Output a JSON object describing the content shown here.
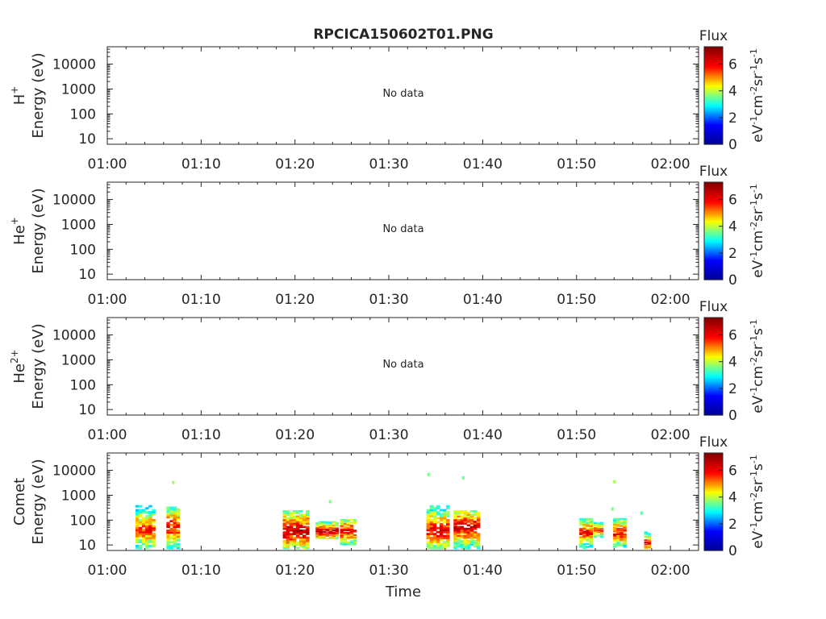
{
  "chart_data": {
    "type": "heatmap",
    "title": "RPCICA150602T01.PNG",
    "xlabel": "Time",
    "x_ticks": [
      "01:00",
      "01:10",
      "01:20",
      "01:30",
      "01:40",
      "01:50",
      "02:00"
    ],
    "x_range_minutes": [
      0,
      63
    ],
    "y_scale": "log",
    "y_ticks": [
      "10",
      "100",
      "1000",
      "10000"
    ],
    "ylim_eV": [
      6,
      50000
    ],
    "colorbar": {
      "title": "Flux",
      "label_parts": [
        "eV",
        "-1",
        "cm",
        "-2",
        "sr",
        "-1",
        "s",
        "-1"
      ],
      "ticks": [
        "0",
        "2",
        "4",
        "6"
      ],
      "range": [
        0,
        7.3
      ],
      "colormap": [
        "#00008f",
        "#0000ff",
        "#00ffff",
        "#ffff00",
        "#ff0000",
        "#800000"
      ]
    },
    "panels": [
      {
        "species": "H",
        "sup": "+",
        "ylabel": "Energy (eV)",
        "no_data": "No data",
        "blobs": []
      },
      {
        "species": "He",
        "sup": "+",
        "ylabel": "Energy (eV)",
        "no_data": "No data",
        "blobs": []
      },
      {
        "species": "He",
        "sup": "2+",
        "ylabel": "Energy (eV)",
        "no_data": "No data",
        "blobs": []
      },
      {
        "species": "Comet",
        "sup": "",
        "ylabel": "Energy (eV)",
        "no_data": "",
        "blobs": [
          {
            "t0": 3.0,
            "t1": 4.8,
            "emin": 7,
            "epeak": 40,
            "emax": 400,
            "flux": 5.8
          },
          {
            "t0": 6.3,
            "t1": 7.6,
            "emin": 7,
            "epeak": 50,
            "emax": 350,
            "flux": 6.0
          },
          {
            "t0": 18.7,
            "t1": 21.4,
            "emin": 7,
            "epeak": 35,
            "emax": 250,
            "flux": 6.6
          },
          {
            "t0": 22.2,
            "t1": 24.6,
            "emin": 18,
            "epeak": 35,
            "emax": 90,
            "flux": 6.6
          },
          {
            "t0": 24.8,
            "t1": 26.4,
            "emin": 10,
            "epeak": 35,
            "emax": 110,
            "flux": 6.3
          },
          {
            "t0": 34.0,
            "t1": 36.4,
            "emin": 7,
            "epeak": 35,
            "emax": 400,
            "flux": 6.2
          },
          {
            "t0": 36.9,
            "t1": 39.6,
            "emin": 7,
            "epeak": 50,
            "emax": 250,
            "flux": 6.4
          },
          {
            "t0": 50.3,
            "t1": 51.6,
            "emin": 7,
            "epeak": 30,
            "emax": 120,
            "flux": 5.9
          },
          {
            "t0": 51.8,
            "t1": 52.6,
            "emin": 20,
            "epeak": 40,
            "emax": 90,
            "flux": 5.9
          },
          {
            "t0": 53.9,
            "t1": 55.2,
            "emin": 7,
            "epeak": 30,
            "emax": 120,
            "flux": 6.0
          },
          {
            "t0": 57.2,
            "t1": 57.9,
            "emin": 7,
            "epeak": 12,
            "emax": 35,
            "flux": 6.3
          }
        ],
        "specks": [
          {
            "t": 6.9,
            "e": 3200,
            "flux": 3.8
          },
          {
            "t": 23.6,
            "e": 550,
            "flux": 3.6
          },
          {
            "t": 34.1,
            "e": 6800,
            "flux": 3.6
          },
          {
            "t": 37.8,
            "e": 5000,
            "flux": 3.5
          },
          {
            "t": 53.9,
            "e": 3500,
            "flux": 3.9
          },
          {
            "t": 53.7,
            "e": 280,
            "flux": 3.6
          },
          {
            "t": 56.8,
            "e": 190,
            "flux": 3.4
          }
        ]
      }
    ]
  }
}
